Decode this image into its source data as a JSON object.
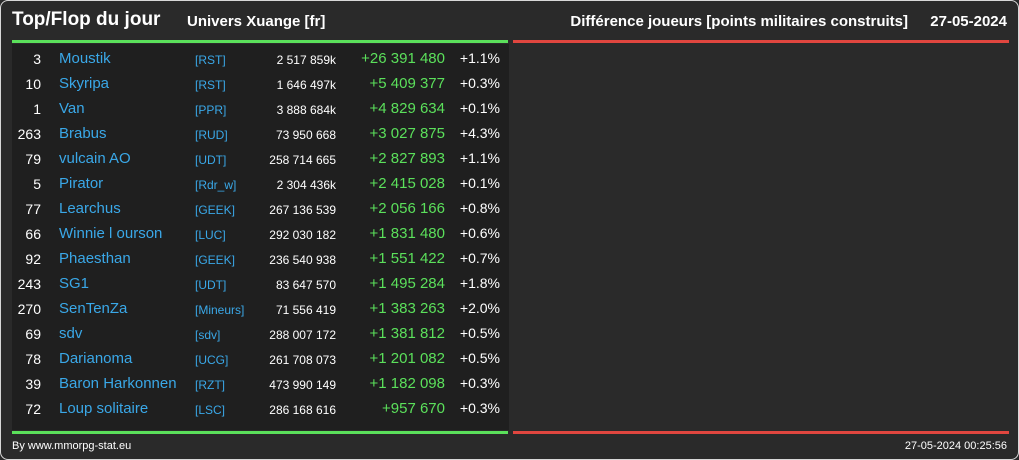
{
  "header": {
    "title": "Top/Flop du jour",
    "universe": "Univers Xuange [fr]",
    "metric": "Différence joueurs [points militaires construits]",
    "date": "27-05-2024"
  },
  "rows": [
    {
      "rank": "3",
      "name": "Moustik",
      "alliance": "[RST]",
      "total": "2 517 859k",
      "diff": "+26 391 480",
      "pct": "+1.1%"
    },
    {
      "rank": "10",
      "name": "Skyripa",
      "alliance": "[RST]",
      "total": "1 646 497k",
      "diff": "+5 409 377",
      "pct": "+0.3%"
    },
    {
      "rank": "1",
      "name": "Van",
      "alliance": "[PPR]",
      "total": "3 888 684k",
      "diff": "+4 829 634",
      "pct": "+0.1%"
    },
    {
      "rank": "263",
      "name": "Brabus",
      "alliance": "[RUD]",
      "total": "73 950 668",
      "diff": "+3 027 875",
      "pct": "+4.3%"
    },
    {
      "rank": "79",
      "name": "vulcain AO",
      "alliance": "[UDT]",
      "total": "258 714 665",
      "diff": "+2 827 893",
      "pct": "+1.1%"
    },
    {
      "rank": "5",
      "name": "Pirator",
      "alliance": "[Rdr_w]",
      "total": "2 304 436k",
      "diff": "+2 415 028",
      "pct": "+0.1%"
    },
    {
      "rank": "77",
      "name": "Learchus",
      "alliance": "[GEEK]",
      "total": "267 136 539",
      "diff": "+2 056 166",
      "pct": "+0.8%"
    },
    {
      "rank": "66",
      "name": "Winnie l ourson",
      "alliance": "[LUC]",
      "total": "292 030 182",
      "diff": "+1 831 480",
      "pct": "+0.6%"
    },
    {
      "rank": "92",
      "name": "Phaesthan",
      "alliance": "[GEEK]",
      "total": "236 540 938",
      "diff": "+1 551 422",
      "pct": "+0.7%"
    },
    {
      "rank": "243",
      "name": "SG1",
      "alliance": "[UDT]",
      "total": "83 647 570",
      "diff": "+1 495 284",
      "pct": "+1.8%"
    },
    {
      "rank": "270",
      "name": "SenTenZa",
      "alliance": "[Mineurs]",
      "total": "71 556 419",
      "diff": "+1 383 263",
      "pct": "+2.0%"
    },
    {
      "rank": "69",
      "name": "sdv",
      "alliance": "[sdv]",
      "total": "288 007 172",
      "diff": "+1 381 812",
      "pct": "+0.5%"
    },
    {
      "rank": "78",
      "name": "Darianoma",
      "alliance": "[UCG]",
      "total": "261 708 073",
      "diff": "+1 201 082",
      "pct": "+0.5%"
    },
    {
      "rank": "39",
      "name": "Baron Harkonnen",
      "alliance": "[RZT]",
      "total": "473 990 149",
      "diff": "+1 182 098",
      "pct": "+0.3%"
    },
    {
      "rank": "72",
      "name": "Loup solitaire",
      "alliance": "[LSC]",
      "total": "286 168 616",
      "diff": "+957 670",
      "pct": "+0.3%"
    }
  ],
  "footer": {
    "source": "By www.mmorpg-stat.eu",
    "timestamp": "27-05-2024 00:25:56"
  },
  "colors": {
    "gain": "#5be05b",
    "loss": "#e0463f",
    "link": "#3aa8e8"
  }
}
